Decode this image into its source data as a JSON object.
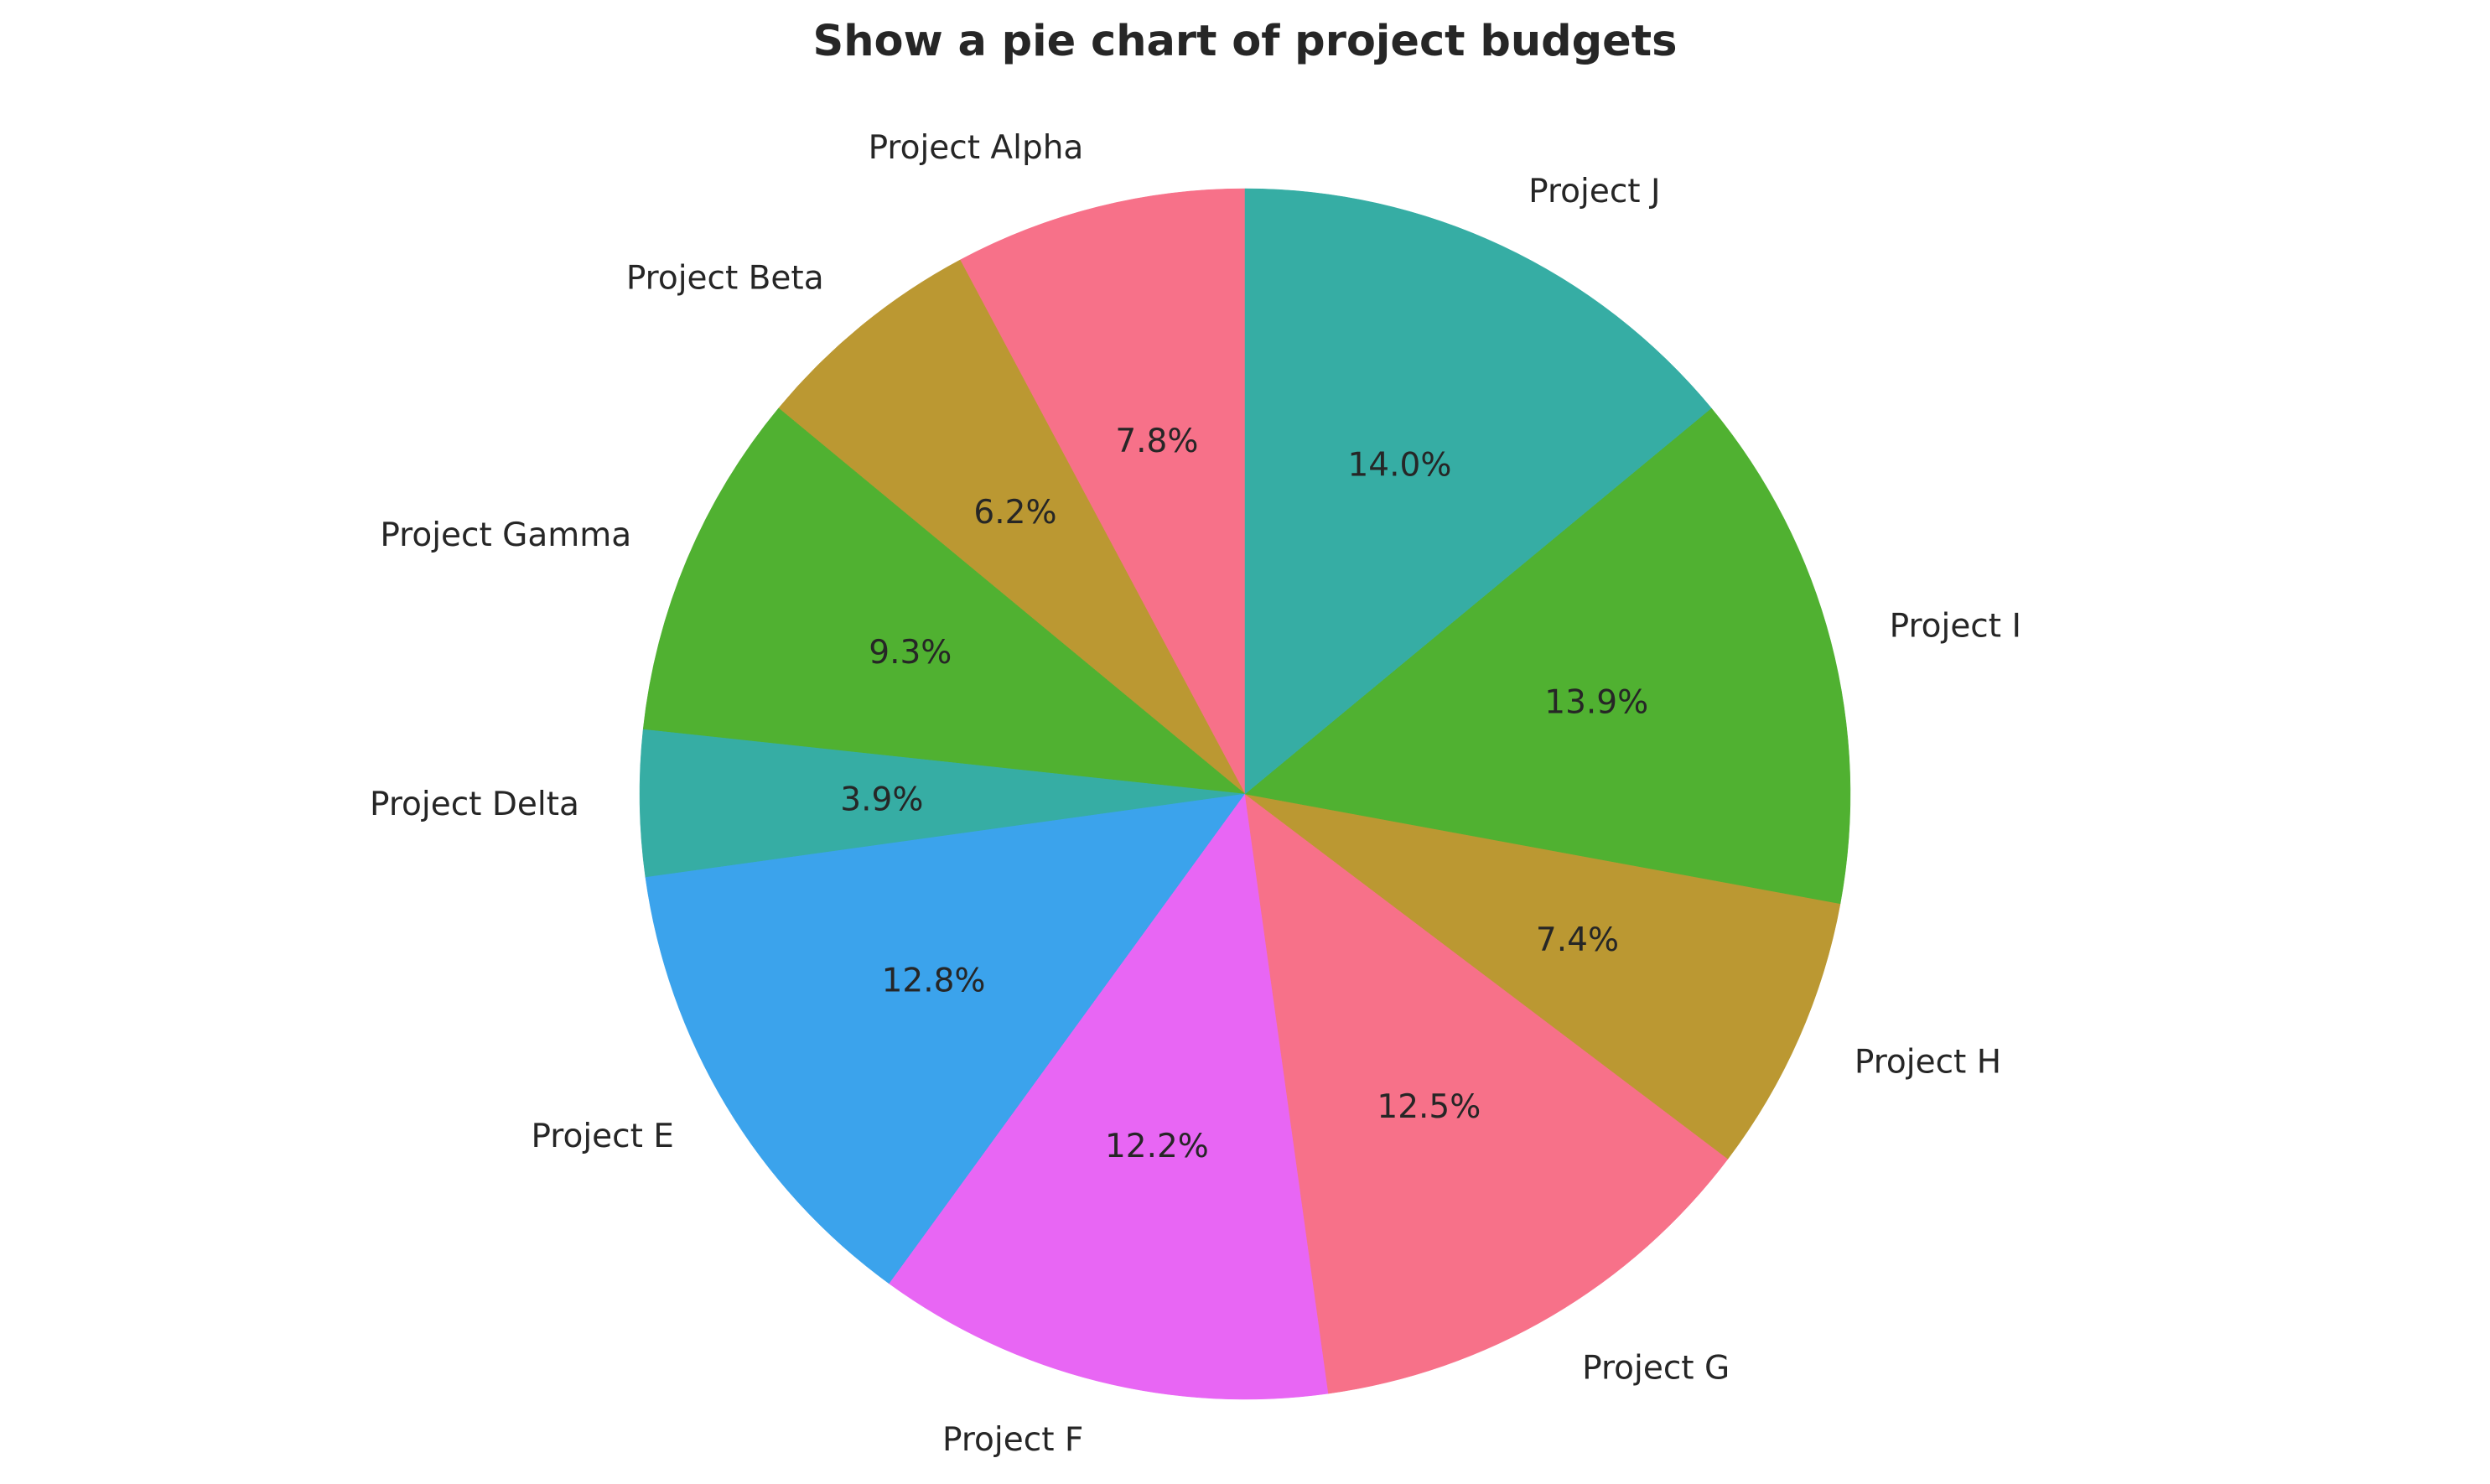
{
  "chart_data": {
    "type": "pie",
    "title": "Show a pie chart of project budgets",
    "start_angle_deg": 90,
    "direction": "counterclockwise",
    "slices": [
      {
        "label": "Project Alpha",
        "percent": 7.8,
        "pct_label": "7.8%",
        "color": "#f77189"
      },
      {
        "label": "Project Beta",
        "percent": 6.2,
        "pct_label": "6.2%",
        "color": "#bb9832"
      },
      {
        "label": "Project Gamma",
        "percent": 9.3,
        "pct_label": "9.3%",
        "color": "#50b131"
      },
      {
        "label": "Project Delta",
        "percent": 3.9,
        "pct_label": "3.9%",
        "color": "#36ada4"
      },
      {
        "label": "Project E",
        "percent": 12.8,
        "pct_label": "12.8%",
        "color": "#3ba3ec"
      },
      {
        "label": "Project F",
        "percent": 12.2,
        "pct_label": "12.2%",
        "color": "#e866f4"
      },
      {
        "label": "Project G",
        "percent": 12.5,
        "pct_label": "12.5%",
        "color": "#f77189"
      },
      {
        "label": "Project H",
        "percent": 7.4,
        "pct_label": "7.4%",
        "color": "#bb9832"
      },
      {
        "label": "Project I",
        "percent": 13.9,
        "pct_label": "13.9%",
        "color": "#50b131"
      },
      {
        "label": "Project J",
        "percent": 14.0,
        "pct_label": "14.0%",
        "color": "#36ada4"
      }
    ]
  }
}
